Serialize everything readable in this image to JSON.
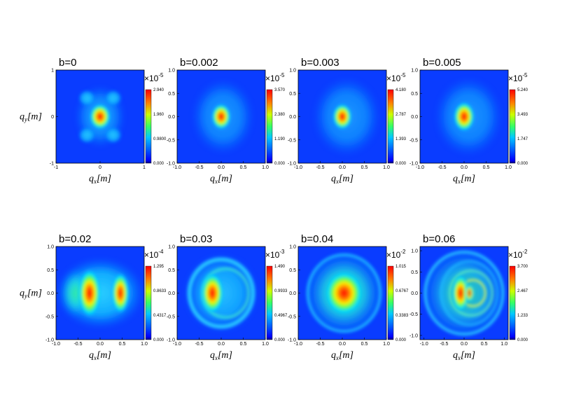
{
  "chart_data": [
    {
      "type": "heatmap",
      "title": "b=0",
      "xlabel": "q_x[m]",
      "ylabel": "q_y[m]",
      "xlim": [
        -1,
        1
      ],
      "ylim": [
        -1,
        1
      ],
      "xticks": [
        "-1",
        "0",
        "1"
      ],
      "yticks": [
        "-1",
        "0",
        "1"
      ],
      "colorbar": {
        "multiplier": "×10",
        "exponent": "-5",
        "ticks": [
          "0.000",
          "0.9800",
          "1.960",
          "2.940"
        ]
      }
    },
    {
      "type": "heatmap",
      "title": "b=0.002",
      "xlabel": "q_x[m]",
      "ylabel": "",
      "xlim": [
        -1,
        1
      ],
      "ylim": [
        -1,
        1
      ],
      "xticks": [
        "-1.0",
        "-0.5",
        "0.0",
        "0.5",
        "1.0"
      ],
      "yticks": [
        "-1.0",
        "-0.5",
        "0.0",
        "0.5",
        "1.0"
      ],
      "colorbar": {
        "multiplier": "×10",
        "exponent": "-5",
        "ticks": [
          "0.000",
          "1.190",
          "2.380",
          "3.570"
        ]
      }
    },
    {
      "type": "heatmap",
      "title": "b=0.003",
      "xlabel": "q_x[m]",
      "ylabel": "",
      "xlim": [
        -1,
        1
      ],
      "ylim": [
        -1,
        1
      ],
      "xticks": [
        "-1.0",
        "-0.5",
        "0.0",
        "0.5",
        "1.0"
      ],
      "yticks": [
        "-1.0",
        "-0.5",
        "0.0",
        "0.5",
        "1.0"
      ],
      "colorbar": {
        "multiplier": "×10",
        "exponent": "-5",
        "ticks": [
          "0.000",
          "1.393",
          "2.787",
          "4.180"
        ]
      }
    },
    {
      "type": "heatmap",
      "title": "b=0.005",
      "xlabel": "q_x[m]",
      "ylabel": "",
      "xlim": [
        -1,
        1
      ],
      "ylim": [
        -1,
        1
      ],
      "xticks": [
        "-1.0",
        "-0.5",
        "0.0",
        "0.5",
        "1.0"
      ],
      "yticks": [
        "-1.0",
        "-0.5",
        "0.0",
        "0.5",
        "1.0"
      ],
      "colorbar": {
        "multiplier": "×10",
        "exponent": "-5",
        "ticks": [
          "0.000",
          "1.747",
          "3.493",
          "5.240"
        ]
      }
    },
    {
      "type": "heatmap",
      "title": "b=0.02",
      "xlabel": "q_x[m]",
      "ylabel": "q_y[m]",
      "xlim": [
        -1,
        1
      ],
      "ylim": [
        -1,
        1
      ],
      "xticks": [
        "-1.0",
        "-0.5",
        "0.0",
        "0.5",
        "1.0"
      ],
      "yticks": [
        "-1.0",
        "-0.5",
        "0.0",
        "0.5",
        "1.0"
      ],
      "colorbar": {
        "multiplier": "×10",
        "exponent": "-4",
        "ticks": [
          "0.000",
          "0.4317",
          "0.8633",
          "1.295"
        ]
      }
    },
    {
      "type": "heatmap",
      "title": "b=0.03",
      "xlabel": "q_x[m]",
      "ylabel": "",
      "xlim": [
        -1,
        1
      ],
      "ylim": [
        -1,
        1
      ],
      "xticks": [
        "-1.0",
        "-0.5",
        "0.0",
        "0.5",
        "1.0"
      ],
      "yticks": [
        "-1.0",
        "-0.5",
        "0.0",
        "0.5",
        "1.0"
      ],
      "colorbar": {
        "multiplier": "×10",
        "exponent": "-3",
        "ticks": [
          "0.000",
          "0.4967",
          "0.9933",
          "1.490"
        ]
      }
    },
    {
      "type": "heatmap",
      "title": "b=0.04",
      "xlabel": "q_x[m]",
      "ylabel": "",
      "xlim": [
        -1,
        1
      ],
      "ylim": [
        -1,
        1
      ],
      "xticks": [
        "-1.0",
        "-0.5",
        "0.0",
        "0.5",
        "1.0"
      ],
      "yticks": [
        "-1.0",
        "-0.5",
        "0.0",
        "0.5",
        "1.0"
      ],
      "colorbar": {
        "multiplier": "×10",
        "exponent": "-2",
        "ticks": [
          "0.000",
          "0.3383",
          "0.6767",
          "1.015"
        ]
      }
    },
    {
      "type": "heatmap",
      "title": "b=0.06",
      "xlabel": "q_x[m]",
      "ylabel": "",
      "xlim": [
        -1.1,
        1.1
      ],
      "ylim": [
        -1.1,
        1.1
      ],
      "xticks": [
        "-1.0",
        "-0.5",
        "0.0",
        "0.5",
        "1.0"
      ],
      "yticks": [
        "-1.0",
        "-0.5",
        "0.0",
        "0.5",
        "1.0"
      ],
      "colorbar": {
        "multiplier": "×10",
        "exponent": "-2",
        "ticks": [
          "0.000",
          "1.233",
          "2.467",
          "3.700"
        ]
      }
    }
  ]
}
